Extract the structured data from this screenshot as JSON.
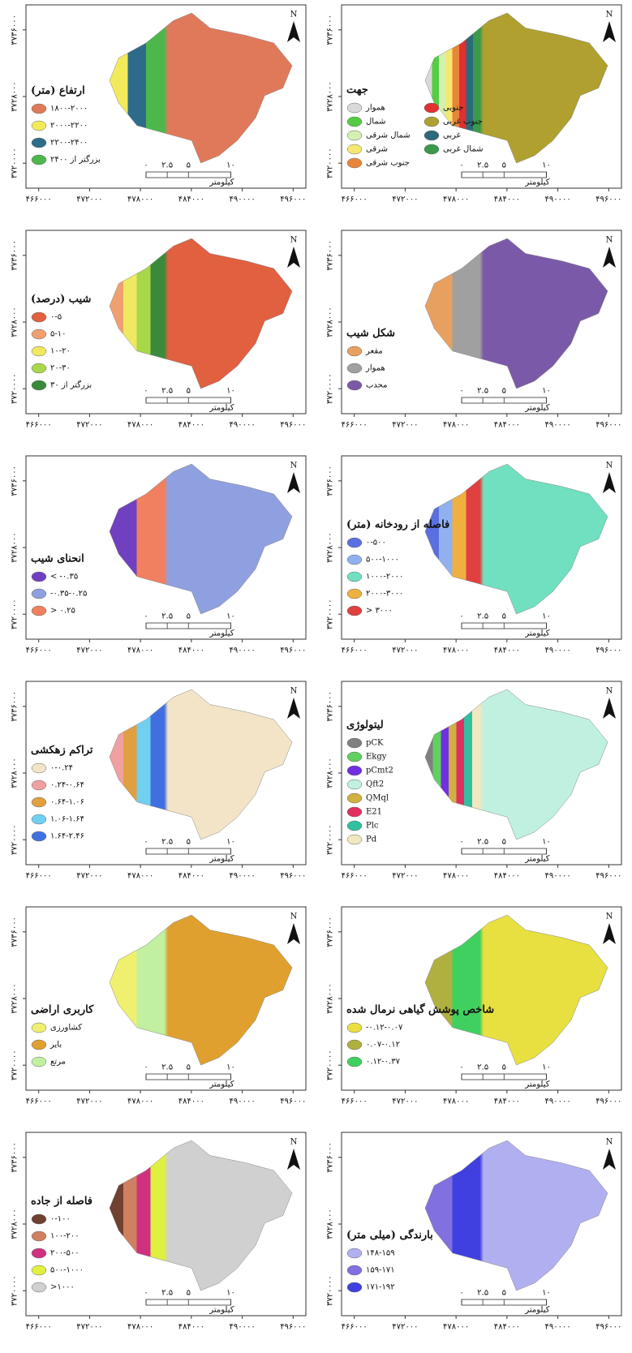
{
  "panels": [
    {
      "title": "ارتفاع (متر)",
      "legend": [
        {
          "label": "۱۸۰۰-۲۰۰۰",
          "color": "#e0795a"
        },
        {
          "label": "۲۰۰۰-۲۲۰۰",
          "color": "#f2ea5a"
        },
        {
          "label": "۲۲۰۰-۲۴۰۰",
          "color": "#2e6b8a"
        },
        {
          "label": "بزرگتر از ۲۴۰۰",
          "color": "#4cb84c"
        }
      ]
    },
    {
      "title": "جهت",
      "legend": [
        {
          "label": "هموار",
          "color": "#d9d9d9"
        },
        {
          "label": "شمال",
          "color": "#55cc44"
        },
        {
          "label": "شمال شرقی",
          "color": "#d4f0b0"
        },
        {
          "label": "شرقی",
          "color": "#f5e870"
        },
        {
          "label": "جنوب شرقی",
          "color": "#e8853a"
        },
        {
          "label": "جنوبی",
          "color": "#e03030"
        },
        {
          "label": "جنوب غربی",
          "color": "#b0a030"
        },
        {
          "label": "غربی",
          "color": "#2a6a7a"
        },
        {
          "label": "شمال غربی",
          "color": "#3a9a4a"
        }
      ]
    },
    {
      "title": "شیب (درصد)",
      "legend": [
        {
          "label": "۰-۵",
          "color": "#e06040"
        },
        {
          "label": "۵-۱۰",
          "color": "#f0a070"
        },
        {
          "label": "۱۰-۲۰",
          "color": "#f0e860"
        },
        {
          "label": "۲۰-۳۰",
          "color": "#a8d84a"
        },
        {
          "label": "بزرگتر از ۳۰",
          "color": "#3a8a3a"
        }
      ]
    },
    {
      "title": "شکل شیب",
      "legend": [
        {
          "label": "مقعر",
          "color": "#e8a060"
        },
        {
          "label": "هموار",
          "color": "#a0a0a0"
        },
        {
          "label": "محدب",
          "color": "#7a5aa8"
        }
      ]
    },
    {
      "title": "انحنای شیب",
      "legend": [
        {
          "label": "< -۰.۳۵",
          "color": "#7040c0"
        },
        {
          "label": "-۰.۳۵-۰.۲۵",
          "color": "#8fa0e0"
        },
        {
          "label": "> ۰.۲۵",
          "color": "#f08060"
        }
      ]
    },
    {
      "title": "فاصله از رودخانه (متر)",
      "legend": [
        {
          "label": "۰-۵۰۰",
          "color": "#5a70e0"
        },
        {
          "label": "۵۰۰-۱۰۰۰",
          "color": "#90b0f0"
        },
        {
          "label": "۱۰۰۰-۲۰۰۰",
          "color": "#70e0c0"
        },
        {
          "label": "۲۰۰۰-۳۰۰۰",
          "color": "#f0b040"
        },
        {
          "label": "> ۳۰۰۰",
          "color": "#e04040"
        }
      ]
    },
    {
      "title": "تراکم زهکشی",
      "legend": [
        {
          "label": "۰-۰.۲۴",
          "color": "#f3e4c8"
        },
        {
          "label": "۰.۲۴-۰.۶۴",
          "color": "#f0a0a0"
        },
        {
          "label": "۰.۶۴-۱.۰۶",
          "color": "#e0a040"
        },
        {
          "label": "۱.۰۶-۱.۶۴",
          "color": "#70d0f0"
        },
        {
          "label": "۱.۶۴-۲.۴۶",
          "color": "#4070e0"
        }
      ]
    },
    {
      "title": "لیتولوژی",
      "legend": [
        {
          "label": "pCK",
          "color": "#808080"
        },
        {
          "label": "Ekgy",
          "color": "#60d060"
        },
        {
          "label": "pCmt2",
          "color": "#7030e0"
        },
        {
          "label": "Qft2",
          "color": "#c0f0e0"
        },
        {
          "label": "QMql",
          "color": "#d0b040"
        },
        {
          "label": "E21",
          "color": "#e03060"
        },
        {
          "label": "Plc",
          "color": "#30c0a0"
        },
        {
          "label": "Pd",
          "color": "#f0e8c0"
        }
      ]
    },
    {
      "title": "کاربری اراضی",
      "legend": [
        {
          "label": "کشاورزی",
          "color": "#f0f070"
        },
        {
          "label": "بایر",
          "color": "#e0a030"
        },
        {
          "label": "مرتع",
          "color": "#c0f0a0"
        }
      ]
    },
    {
      "title": "شاخص پوشش گیاهی نرمال شده",
      "legend": [
        {
          "label": "-۰.۱۲-۰.۰۷",
          "color": "#e8e040"
        },
        {
          "label": "۰.۰۷-۰.۱۲",
          "color": "#b0b040"
        },
        {
          "label": "۰.۱۲-۰.۳۷",
          "color": "#40d060"
        }
      ]
    },
    {
      "title": "فاصله از جاده",
      "legend": [
        {
          "label": "۰-۱۰۰",
          "color": "#704030"
        },
        {
          "label": "۱۰۰-۲۰۰",
          "color": "#d08060"
        },
        {
          "label": "۲۰۰-۵۰۰",
          "color": "#d03080"
        },
        {
          "label": "۵۰۰-۱۰۰۰",
          "color": "#e0f040"
        },
        {
          "label": ">۱۰۰۰",
          "color": "#d0d0d0"
        }
      ]
    },
    {
      "title": "بارندگی (میلی متر)",
      "legend": [
        {
          "label": "۱۴۸-۱۵۹",
          "color": "#b0b0f0"
        },
        {
          "label": "۱۵۹-۱۷۱",
          "color": "#8070e0"
        },
        {
          "label": "۱۷۱-۱۹۲",
          "color": "#4040e0"
        }
      ]
    }
  ],
  "axes": {
    "x": [
      {
        "value": 466000,
        "label": "۴۶۶۰۰۰"
      },
      {
        "value": 472000,
        "label": "۴۷۲۰۰۰"
      },
      {
        "value": 478000,
        "label": "۴۷۸۰۰۰"
      },
      {
        "value": 484000,
        "label": "۴۸۴۰۰۰"
      },
      {
        "value": 490000,
        "label": "۴۹۰۰۰۰"
      },
      {
        "value": 496000,
        "label": "۴۹۶۰۰۰"
      }
    ],
    "y": [
      {
        "value": 3736000,
        "label": "۳۷۳۶۰۰۰"
      },
      {
        "value": 3728000,
        "label": "۳۷۲۸۰۰۰"
      },
      {
        "value": 3720000,
        "label": "۳۷۲۰۰۰۰"
      }
    ]
  },
  "scale": {
    "ticks": [
      {
        "value": 0,
        "label": "۰"
      },
      {
        "value": 2.5,
        "label": "۲.۵"
      },
      {
        "value": 5,
        "label": "۵"
      },
      {
        "value": 10,
        "label": "۱۰"
      }
    ],
    "unit": "کیلومتر"
  },
  "north": "N"
}
